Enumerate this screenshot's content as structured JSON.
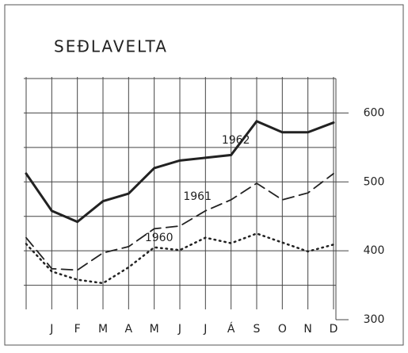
{
  "chart_data": {
    "type": "line",
    "title": "SEÐLAVELTA",
    "categories": [
      null,
      "J",
      "F",
      "M",
      "A",
      "M",
      "J",
      "J",
      "Á",
      "S",
      "O",
      "N",
      "D"
    ],
    "series": [
      {
        "name": "1962",
        "color": "#222222",
        "style": "solid",
        "values": [
          512,
          458,
          442,
          472,
          483,
          520,
          531,
          535,
          539,
          588,
          572,
          572,
          586
        ]
      },
      {
        "name": "1961",
        "color": "#222222",
        "style": "dashed",
        "values": [
          419,
          374,
          372,
          397,
          406,
          432,
          436,
          458,
          474,
          498,
          474,
          484,
          512
        ]
      },
      {
        "name": "1960",
        "color": "#222222",
        "style": "dotted",
        "values": [
          410,
          370,
          358,
          353,
          376,
          405,
          401,
          419,
          411,
          425,
          412,
          399,
          409
        ]
      }
    ],
    "ylim": [
      300,
      650
    ],
    "yticks": [
      300,
      400,
      500,
      600
    ],
    "minor_yticks": [
      350,
      450,
      550,
      650
    ],
    "grid": true
  }
}
